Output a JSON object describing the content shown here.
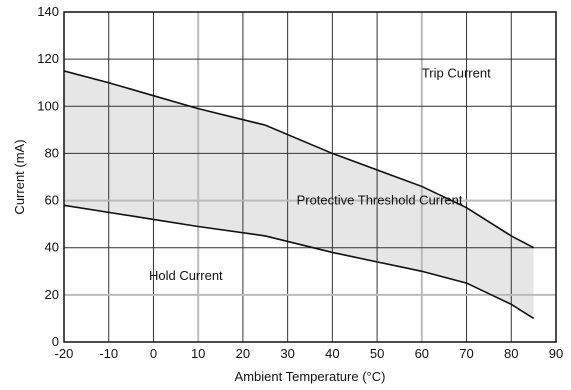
{
  "chart_data": {
    "type": "area",
    "title": "",
    "xlabel": "Ambient Temperature (°C)",
    "ylabel": "Current (mA)",
    "xlim": [
      -20,
      90
    ],
    "ylim": [
      0,
      140
    ],
    "x_ticks": [
      "-20",
      "-10",
      "0",
      "10",
      "20",
      "30",
      "40",
      "50",
      "60",
      "70",
      "80",
      "90"
    ],
    "y_ticks": [
      "0",
      "20",
      "40",
      "60",
      "80",
      "100",
      "120",
      "140"
    ],
    "grid": true,
    "series": [
      {
        "name": "Trip Current",
        "x": [
          -20,
          -10,
          0,
          10,
          25,
          40,
          60,
          70,
          80,
          85
        ],
        "y": [
          115,
          110,
          104.5,
          99,
          92,
          80,
          66,
          57,
          45,
          40
        ]
      },
      {
        "name": "Hold Current",
        "x": [
          -20,
          -10,
          0,
          10,
          25,
          40,
          60,
          70,
          80,
          85
        ],
        "y": [
          58,
          55,
          52,
          49,
          45,
          38,
          30,
          25,
          16,
          10
        ]
      }
    ],
    "annotations": [
      {
        "text": "Trip Current",
        "x": 60,
        "y": 114
      },
      {
        "text": "Protective Threshold Current",
        "x": 32,
        "y": 60
      },
      {
        "text": "Hold Current",
        "x": -1,
        "y": 28
      }
    ],
    "fill_between": {
      "color": "#e6e6e6"
    },
    "colors": {
      "line": "#111111",
      "grid": "#333333",
      "gridLight": "#bbbbbb"
    }
  }
}
